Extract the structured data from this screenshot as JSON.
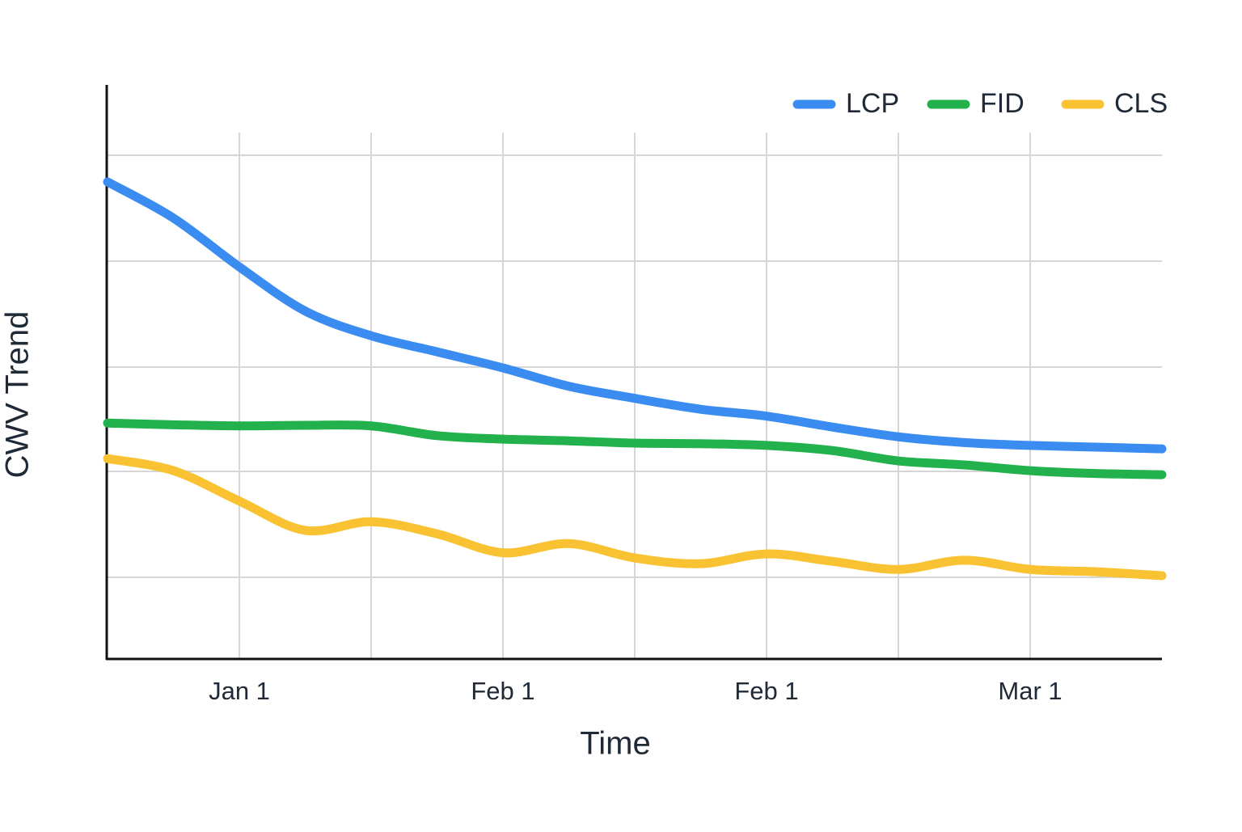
{
  "chart_data": {
    "type": "line",
    "x_label": "Time",
    "y_label": "CWV Trend",
    "categories": [
      null,
      null,
      "Jan 1",
      null,
      null,
      null,
      "Feb 1",
      null,
      null,
      null,
      "Feb 1",
      null,
      null,
      null,
      "Mar 1",
      null,
      null
    ],
    "ylim": [
      0,
      100
    ],
    "grid": true,
    "legend": "top-right",
    "series": [
      {
        "name": "LCP",
        "color": "#3b8cf0",
        "values": [
          83.1,
          76.8,
          68.3,
          60.6,
          56.3,
          53.5,
          50.7,
          47.5,
          45.4,
          43.5,
          42.3,
          40.4,
          38.7,
          37.7,
          37.2,
          36.9,
          36.6
        ]
      },
      {
        "name": "FID",
        "color": "#22b14c",
        "values": [
          41.1,
          40.8,
          40.6,
          40.7,
          40.6,
          38.9,
          38.3,
          38.0,
          37.6,
          37.5,
          37.2,
          36.3,
          34.5,
          33.8,
          32.8,
          32.3,
          32.1
        ]
      },
      {
        "name": "CLS",
        "color": "#f9c232",
        "values": [
          34.9,
          32.8,
          27.5,
          22.4,
          23.9,
          21.8,
          18.5,
          20.1,
          17.6,
          16.6,
          18.3,
          17.0,
          15.6,
          17.2,
          15.6,
          15.2,
          14.5
        ]
      }
    ]
  }
}
